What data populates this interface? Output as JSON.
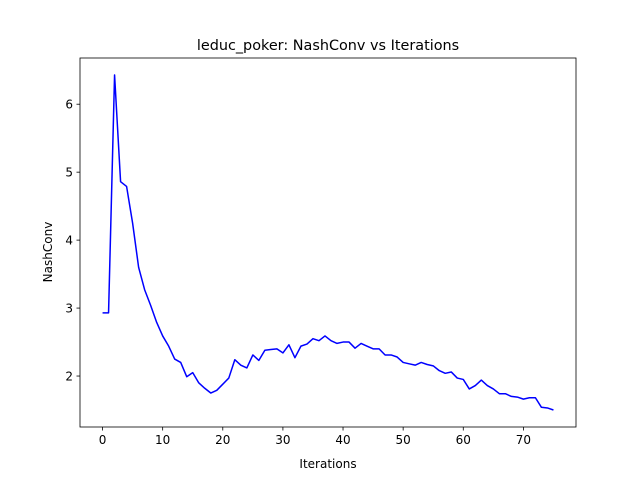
{
  "chart_data": {
    "type": "line",
    "title": "leduc_poker:  NashConv vs Iterations",
    "xlabel": "Iterations",
    "ylabel": "NashConv",
    "xlim": [
      -3.75,
      78.75
    ],
    "ylim": [
      1.25,
      6.68
    ],
    "xticks": [
      0,
      10,
      20,
      30,
      40,
      50,
      60,
      70
    ],
    "yticks": [
      2,
      3,
      4,
      5,
      6
    ],
    "grid": false,
    "series": [
      {
        "color": "#0000ff",
        "x": [
          0,
          1,
          2,
          3,
          4,
          5,
          6,
          7,
          8,
          9,
          10,
          11,
          12,
          13,
          14,
          15,
          16,
          17,
          18,
          19,
          20,
          21,
          22,
          23,
          24,
          25,
          26,
          27,
          28,
          29,
          30,
          31,
          32,
          33,
          34,
          35,
          36,
          37,
          38,
          39,
          40,
          41,
          42,
          43,
          44,
          45,
          46,
          47,
          48,
          49,
          50,
          51,
          52,
          53,
          54,
          55,
          56,
          57,
          58,
          59,
          60,
          61,
          62,
          63,
          64,
          65,
          66,
          67,
          68,
          69,
          70,
          71,
          72,
          73,
          74,
          75
        ],
        "y": [
          2.93,
          2.93,
          6.43,
          4.86,
          4.79,
          4.25,
          3.6,
          3.27,
          3.04,
          2.79,
          2.59,
          2.44,
          2.25,
          2.2,
          1.99,
          2.05,
          1.9,
          1.82,
          1.75,
          1.79,
          1.88,
          1.97,
          2.24,
          2.16,
          2.12,
          2.31,
          2.23,
          2.38,
          2.39,
          2.4,
          2.34,
          2.46,
          2.27,
          2.44,
          2.47,
          2.55,
          2.52,
          2.59,
          2.52,
          2.48,
          2.5,
          2.5,
          2.41,
          2.48,
          2.44,
          2.4,
          2.4,
          2.31,
          2.31,
          2.28,
          2.2,
          2.18,
          2.16,
          2.2,
          2.17,
          2.15,
          2.08,
          2.04,
          2.06,
          1.97,
          1.95,
          1.81,
          1.86,
          1.94,
          1.86,
          1.81,
          1.74,
          1.74,
          1.7,
          1.69,
          1.66,
          1.68,
          1.68,
          1.54,
          1.53,
          1.5
        ]
      }
    ]
  }
}
